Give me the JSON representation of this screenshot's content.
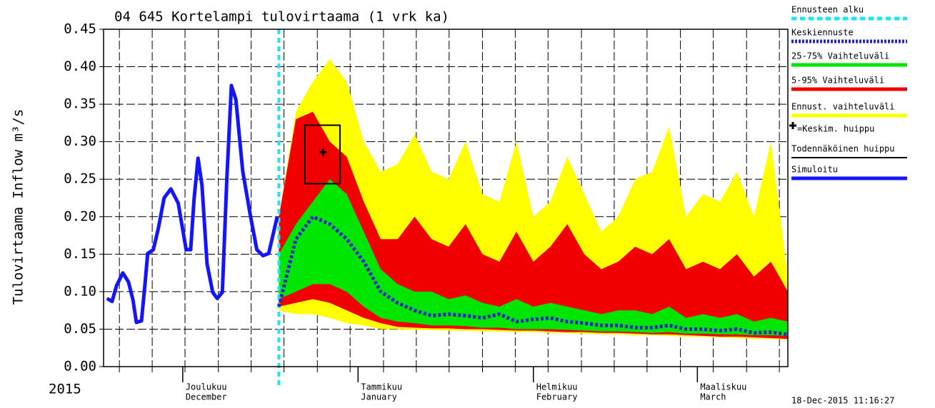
{
  "chart_data": {
    "type": "forecast",
    "title": "04 645 Kortelampi tulovirtaama (1 vrk ka)",
    "ylabel": "Tulovirtaama Inflow m³/s",
    "year_label": "2015",
    "timestamp": "18-Dec-2015 11:16:27",
    "xlim": [
      0,
      121
    ],
    "ylim": [
      0,
      0.45
    ],
    "yticks": [
      {
        "value": 0,
        "label": "0.00"
      },
      {
        "value": 0.05,
        "label": "0.05"
      },
      {
        "value": 0.1,
        "label": "0.10"
      },
      {
        "value": 0.15,
        "label": "0.15"
      },
      {
        "value": 0.2,
        "label": "0.20"
      },
      {
        "value": 0.25,
        "label": "0.25"
      },
      {
        "value": 0.3,
        "label": "0.30"
      },
      {
        "value": 0.35,
        "label": "0.35"
      },
      {
        "value": 0.4,
        "label": "0.40"
      },
      {
        "value": 0.45,
        "label": "0.45"
      }
    ],
    "xticks": [
      {
        "value": 14,
        "label": [
          "Joulukuu",
          "December"
        ]
      },
      {
        "value": 45,
        "label": [
          "Tammikuu",
          "January"
        ]
      },
      {
        "value": 76,
        "label": [
          "Helmikuu",
          "February"
        ]
      },
      {
        "value": 105,
        "label": [
          "Maaliskuu",
          "March"
        ]
      }
    ],
    "xgrid": [
      2.8,
      8.6,
      14.4,
      20.3,
      26.1,
      31.9,
      37.8,
      43.6,
      49.5,
      55.3,
      61.1,
      67.0,
      72.8,
      78.6,
      84.5,
      90.3,
      96.1,
      102.0,
      107.8,
      113.7,
      119.5
    ],
    "grid": true,
    "forecast_start": {
      "name": "Ennusteen alku",
      "x": 31,
      "color": "#22e5f0"
    },
    "x": [
      31,
      34,
      37,
      40,
      43,
      46,
      49,
      52,
      55,
      58,
      61,
      64,
      67,
      70,
      73,
      76,
      79,
      82,
      85,
      88,
      91,
      94,
      97,
      100,
      103,
      106,
      109,
      112,
      115,
      118,
      121
    ],
    "mean": {
      "name": "Keskiennuste",
      "color": "#2424c8",
      "values": [
        0.08,
        0.17,
        0.2,
        0.19,
        0.17,
        0.14,
        0.1,
        0.085,
        0.075,
        0.068,
        0.07,
        0.068,
        0.065,
        0.07,
        0.06,
        0.063,
        0.065,
        0.06,
        0.058,
        0.055,
        0.055,
        0.052,
        0.052,
        0.055,
        0.05,
        0.05,
        0.048,
        0.05,
        0.045,
        0.046,
        0.043
      ]
    },
    "bands": [
      {
        "name": "25-75% Vaihteluväli",
        "color": "#00e600",
        "upper": [
          0.15,
          0.19,
          0.22,
          0.25,
          0.23,
          0.18,
          0.13,
          0.11,
          0.1,
          0.1,
          0.09,
          0.095,
          0.085,
          0.08,
          0.09,
          0.08,
          0.085,
          0.08,
          0.075,
          0.07,
          0.075,
          0.075,
          0.07,
          0.08,
          0.065,
          0.07,
          0.065,
          0.07,
          0.06,
          0.065,
          0.06
        ],
        "lower": [
          0.09,
          0.1,
          0.11,
          0.11,
          0.1,
          0.08,
          0.065,
          0.06,
          0.058,
          0.055,
          0.055,
          0.054,
          0.052,
          0.052,
          0.05,
          0.05,
          0.05,
          0.049,
          0.048,
          0.047,
          0.047,
          0.046,
          0.045,
          0.046,
          0.044,
          0.044,
          0.043,
          0.043,
          0.042,
          0.042,
          0.041
        ]
      },
      {
        "name": "5-95% Vaihteluväli",
        "color": "#f00000",
        "upper": [
          0.2,
          0.33,
          0.34,
          0.3,
          0.28,
          0.22,
          0.17,
          0.17,
          0.2,
          0.17,
          0.16,
          0.19,
          0.15,
          0.14,
          0.18,
          0.14,
          0.16,
          0.19,
          0.15,
          0.13,
          0.14,
          0.16,
          0.15,
          0.17,
          0.13,
          0.14,
          0.13,
          0.15,
          0.12,
          0.14,
          0.1
        ],
        "lower": [
          0.08,
          0.085,
          0.09,
          0.085,
          0.075,
          0.065,
          0.058,
          0.053,
          0.052,
          0.051,
          0.051,
          0.05,
          0.05,
          0.049,
          0.048,
          0.048,
          0.047,
          0.046,
          0.046,
          0.045,
          0.045,
          0.044,
          0.043,
          0.043,
          0.042,
          0.041,
          0.04,
          0.04,
          0.039,
          0.038,
          0.037
        ]
      },
      {
        "name": "Ennust. vaihteluväli",
        "color": "#ffff00",
        "upper": [
          0.2,
          0.34,
          0.38,
          0.41,
          0.38,
          0.3,
          0.26,
          0.27,
          0.31,
          0.26,
          0.25,
          0.3,
          0.23,
          0.22,
          0.3,
          0.2,
          0.22,
          0.28,
          0.23,
          0.18,
          0.2,
          0.25,
          0.26,
          0.32,
          0.2,
          0.23,
          0.22,
          0.26,
          0.2,
          0.3,
          0.12
        ],
        "lower": [
          0.075,
          0.07,
          0.07,
          0.065,
          0.058,
          0.055,
          0.05,
          0.05,
          0.049,
          0.049,
          0.048,
          0.048,
          0.047,
          0.047,
          0.046,
          0.046,
          0.045,
          0.045,
          0.044,
          0.043,
          0.043,
          0.042,
          0.042,
          0.041,
          0.04,
          0.04,
          0.039,
          0.038,
          0.037,
          0.037,
          0.036
        ]
      }
    ],
    "peak_mean": {
      "name": "=Keskim. huippu",
      "x": 38.8,
      "value": 0.286,
      "color": "#000000"
    },
    "peak_box": {
      "name": "Todennäköinen huippu",
      "x": [
        35.6,
        41.8
      ],
      "values": [
        0.244,
        0.322
      ],
      "color": "#000000"
    },
    "simulated": {
      "name": "Simuloitu",
      "color": "#1414ff",
      "x": [
        0.6,
        1.5,
        2.3,
        3.4,
        4.4,
        5.2,
        5.8,
        6.7,
        7.3,
        7.8,
        8.8,
        9.7,
        10.7,
        11.9,
        13.2,
        14.6,
        15.4,
        16.0,
        16.7,
        17.4,
        18.3,
        19.3,
        20.1,
        21.0,
        21.8,
        22.6,
        23.4,
        24.6,
        25.9,
        27.1,
        28.2,
        29.2,
        30.7
      ],
      "values": [
        0.091,
        0.087,
        0.108,
        0.125,
        0.113,
        0.089,
        0.059,
        0.061,
        0.108,
        0.151,
        0.156,
        0.185,
        0.225,
        0.237,
        0.218,
        0.156,
        0.156,
        0.223,
        0.278,
        0.242,
        0.137,
        0.099,
        0.091,
        0.099,
        0.251,
        0.375,
        0.356,
        0.261,
        0.204,
        0.156,
        0.148,
        0.151,
        0.2
      ]
    }
  }
}
